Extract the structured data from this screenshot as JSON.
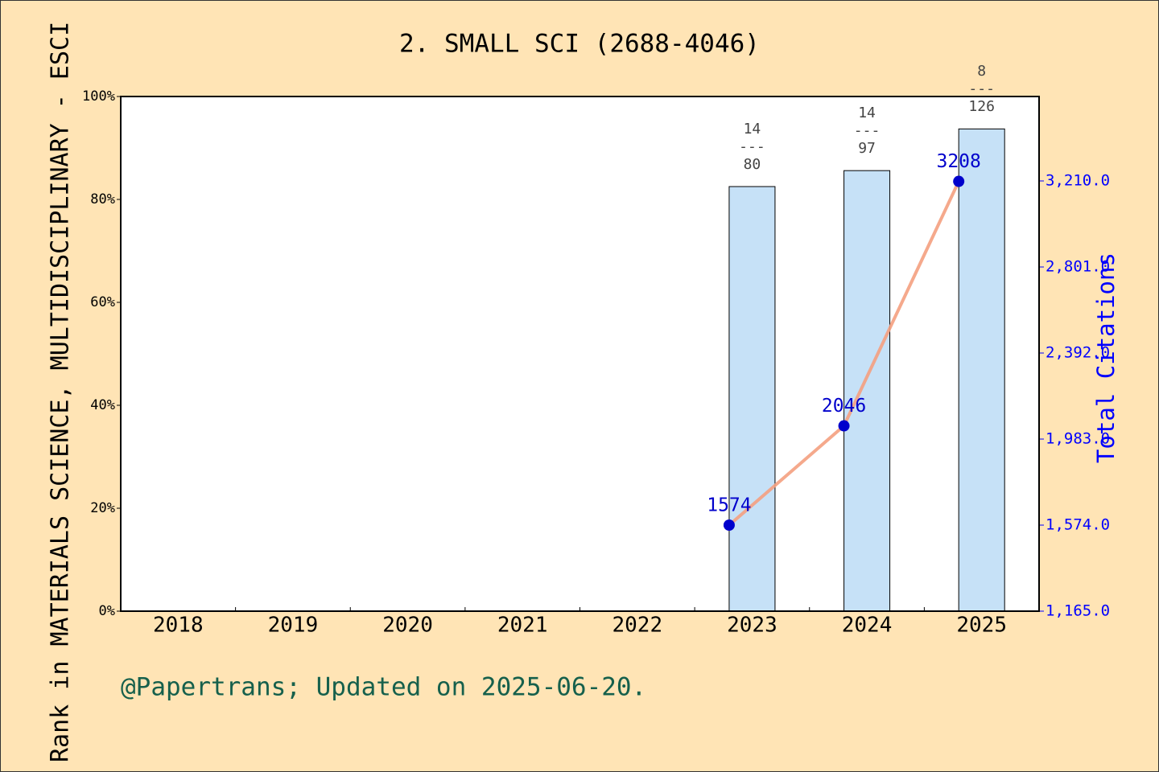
{
  "chart_data": {
    "type": "bar",
    "title": "2. SMALL SCI (2688-4046)",
    "y_label": "Rank in MATERIALS SCIENCE, MULTIDISCIPLINARY - ESCI",
    "y2_label": "Total Citations",
    "footer": "@Papertrans; Updated on 2025-06-20.",
    "categories": [
      "2018",
      "2019",
      "2020",
      "2021",
      "2022",
      "2023",
      "2024",
      "2025"
    ],
    "ylim": [
      0,
      100
    ],
    "yticks": [
      {
        "value": 0,
        "label": "0%"
      },
      {
        "value": 20,
        "label": "20%"
      },
      {
        "value": 40,
        "label": "40%"
      },
      {
        "value": 60,
        "label": "60%"
      },
      {
        "value": 80,
        "label": "80%"
      },
      {
        "value": 100,
        "label": "100%"
      }
    ],
    "y2lim": [
      1165,
      3611.4
    ],
    "y2ticks": [
      {
        "value": 1165,
        "label": "1,165.0"
      },
      {
        "value": 1574,
        "label": "1,574.0"
      },
      {
        "value": 1983,
        "label": "1,983.0"
      },
      {
        "value": 2392,
        "label": "2,392.0"
      },
      {
        "value": 2801,
        "label": "2,801.0"
      },
      {
        "value": 3210,
        "label": "3,210.0"
      }
    ],
    "series": [
      {
        "type": "bar",
        "color": "#c6e1f7",
        "values": [
          null,
          null,
          null,
          null,
          null,
          82.5,
          85.6,
          93.7
        ],
        "value_labels": [
          null,
          null,
          null,
          null,
          null,
          "14\n---\n80",
          "14\n---\n97",
          "8\n---\n126"
        ]
      },
      {
        "type": "line",
        "axis": "y2",
        "color": "#f4a080",
        "marker_color": "#0000cc",
        "values": [
          null,
          null,
          null,
          null,
          null,
          1574,
          2046,
          3208
        ]
      }
    ]
  }
}
